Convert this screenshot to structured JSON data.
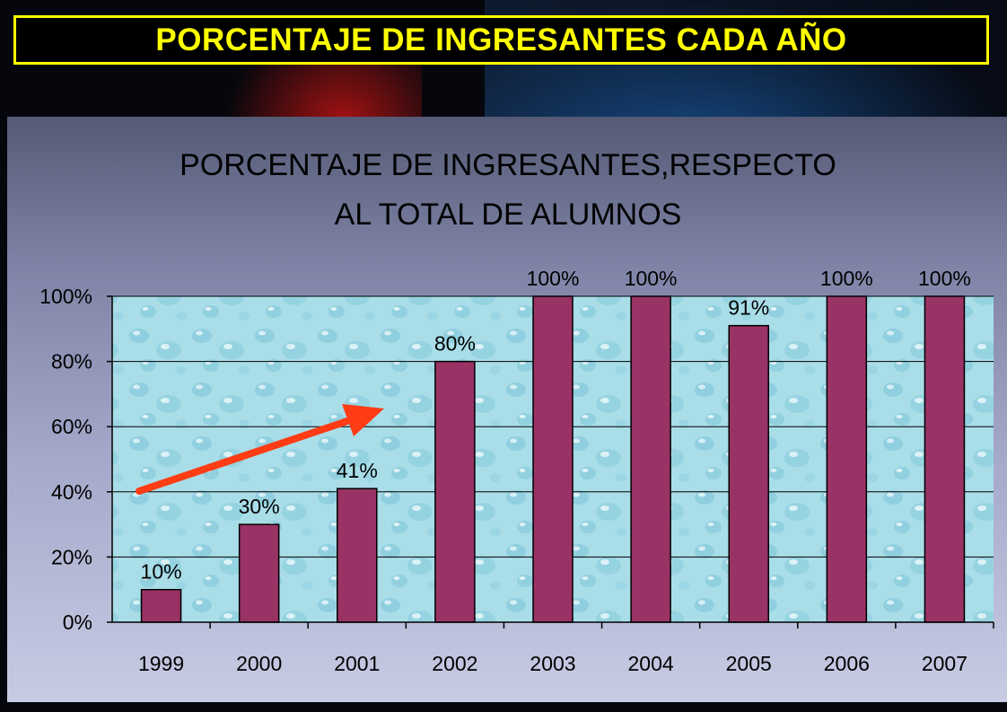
{
  "slide": {
    "title": "PORCENTAJE DE INGRESANTES CADA AÑO"
  },
  "colors": {
    "title_text": "#ffff00",
    "bar_fill": "#993366",
    "arrow": "#ff3c14"
  },
  "chart_data": {
    "type": "bar",
    "title_lines": [
      "PORCENTAJE DE INGRESANTES,RESPECTO",
      "AL TOTAL DE ALUMNOS"
    ],
    "categories": [
      "1999",
      "2000",
      "2001",
      "2002",
      "2003",
      "2004",
      "2005",
      "2006",
      "2007"
    ],
    "values": [
      10,
      30,
      41,
      80,
      100,
      100,
      91,
      100,
      100
    ],
    "data_labels": [
      "10%",
      "30%",
      "41%",
      "80%",
      "100%",
      "100%",
      "91%",
      "100%",
      "100%"
    ],
    "yticks": [
      0,
      20,
      40,
      60,
      80,
      100
    ],
    "ytick_labels": [
      "0%",
      "20%",
      "40%",
      "60%",
      "80%",
      "100%"
    ],
    "ylim": [
      0,
      100
    ],
    "grid": true,
    "legend": "none",
    "annotation": "arrow-trend-up"
  }
}
